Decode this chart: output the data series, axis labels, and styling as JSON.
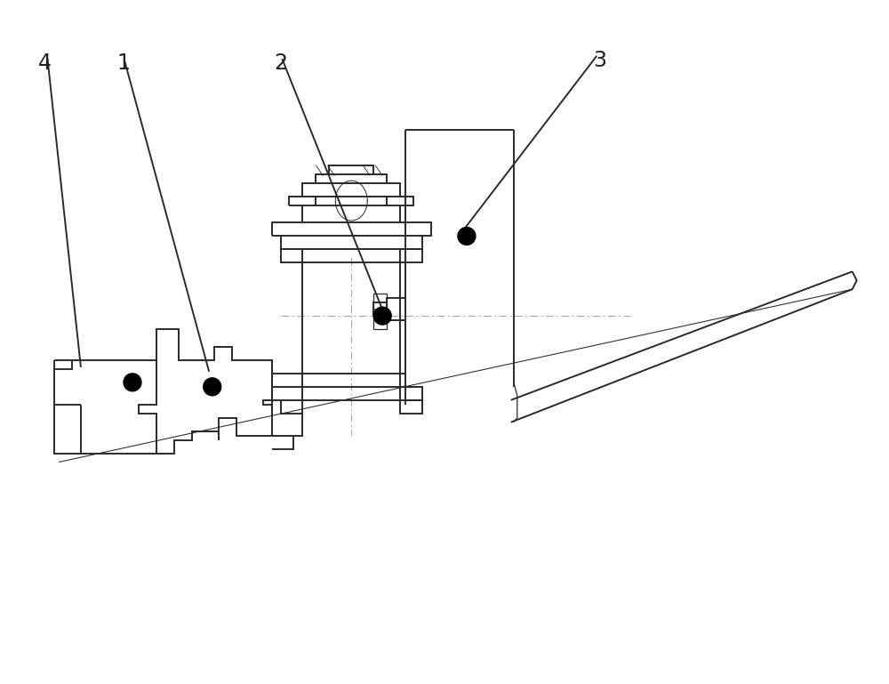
{
  "bg_color": "#ffffff",
  "line_color": "#2a2a2a",
  "dash_color": "#999999",
  "dot_color": "#000000",
  "lw_main": 1.4,
  "lw_thin": 0.9,
  "figsize": [
    10.0,
    7.69
  ],
  "dpi": 100
}
